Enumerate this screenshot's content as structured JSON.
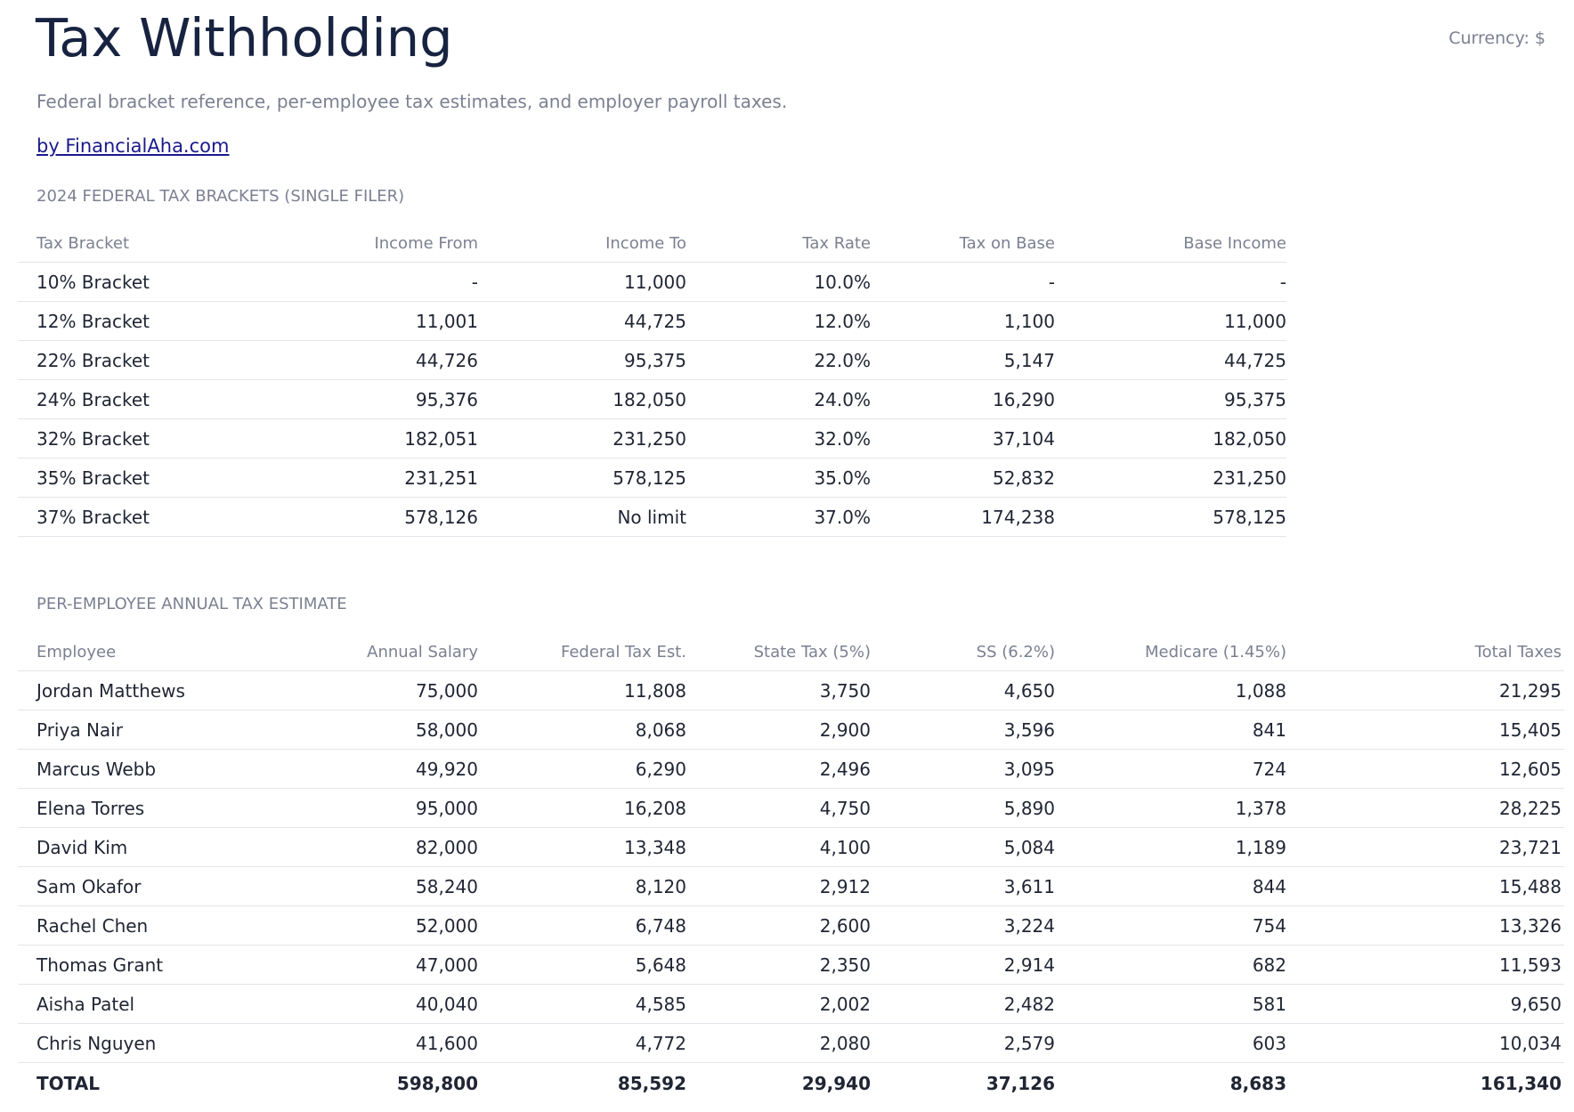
{
  "header": {
    "title": "Tax Withholding",
    "currency": "Currency: $",
    "subtitle": "Federal bracket reference, per-employee tax estimates, and employer payroll taxes.",
    "link": "by FinancialAha.com"
  },
  "brackets": {
    "label": "2024 FEDERAL TAX BRACKETS (SINGLE FILER)",
    "columns": [
      "Tax Bracket",
      "Income From",
      "Income To",
      "Tax Rate",
      "Tax on Base",
      "Base Income"
    ],
    "rows": [
      [
        "10% Bracket",
        "-",
        "11,000",
        "10.0%",
        "-",
        "-"
      ],
      [
        "12% Bracket",
        "11,001",
        "44,725",
        "12.0%",
        "1,100",
        "11,000"
      ],
      [
        "22% Bracket",
        "44,726",
        "95,375",
        "22.0%",
        "5,147",
        "44,725"
      ],
      [
        "24% Bracket",
        "95,376",
        "182,050",
        "24.0%",
        "16,290",
        "95,375"
      ],
      [
        "32% Bracket",
        "182,051",
        "231,250",
        "32.0%",
        "37,104",
        "182,050"
      ],
      [
        "35% Bracket",
        "231,251",
        "578,125",
        "35.0%",
        "52,832",
        "231,250"
      ],
      [
        "37% Bracket",
        "578,126",
        "No limit",
        "37.0%",
        "174,238",
        "578,125"
      ]
    ]
  },
  "employees": {
    "label": "PER-EMPLOYEE ANNUAL TAX ESTIMATE",
    "columns": [
      "Employee",
      "Annual Salary",
      "Federal Tax Est.",
      "State Tax (5%)",
      "SS (6.2%)",
      "Medicare (1.45%)",
      "Total Taxes"
    ],
    "rows": [
      [
        "Jordan Matthews",
        "75,000",
        "11,808",
        "3,750",
        "4,650",
        "1,088",
        "21,295"
      ],
      [
        "Priya Nair",
        "58,000",
        "8,068",
        "2,900",
        "3,596",
        "841",
        "15,405"
      ],
      [
        "Marcus Webb",
        "49,920",
        "6,290",
        "2,496",
        "3,095",
        "724",
        "12,605"
      ],
      [
        "Elena Torres",
        "95,000",
        "16,208",
        "4,750",
        "5,890",
        "1,378",
        "28,225"
      ],
      [
        "David Kim",
        "82,000",
        "13,348",
        "4,100",
        "5,084",
        "1,189",
        "23,721"
      ],
      [
        "Sam Okafor",
        "58,240",
        "8,120",
        "2,912",
        "3,611",
        "844",
        "15,488"
      ],
      [
        "Rachel Chen",
        "52,000",
        "6,748",
        "2,600",
        "3,224",
        "754",
        "13,326"
      ],
      [
        "Thomas Grant",
        "47,000",
        "5,648",
        "2,350",
        "2,914",
        "682",
        "11,593"
      ],
      [
        "Aisha Patel",
        "40,040",
        "4,585",
        "2,002",
        "2,482",
        "581",
        "9,650"
      ],
      [
        "Chris Nguyen",
        "41,600",
        "4,772",
        "2,080",
        "2,579",
        "603",
        "10,034"
      ]
    ],
    "total": [
      "TOTAL",
      "598,800",
      "85,592",
      "29,940",
      "37,126",
      "8,683",
      "161,340"
    ]
  }
}
